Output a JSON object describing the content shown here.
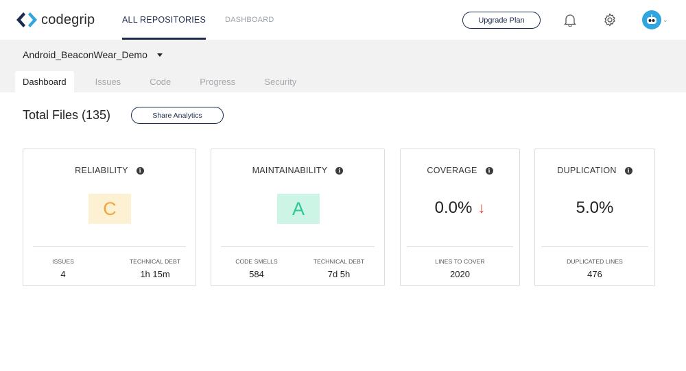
{
  "header": {
    "brand": "codegrip",
    "nav": {
      "all_repositories": "ALL REPOSITORIES",
      "dashboard": "DASHBOARD"
    },
    "upgrade_label": "Upgrade Plan",
    "icons": [
      "bell-icon",
      "gear-icon",
      "avatar-robot-icon"
    ],
    "accent": "#1b2a4e"
  },
  "repo": {
    "name": "Android_BeaconWear_Demo"
  },
  "tabs": [
    {
      "label": "Dashboard",
      "active": true
    },
    {
      "label": "Issues",
      "active": false
    },
    {
      "label": "Code",
      "active": false
    },
    {
      "label": "Progress",
      "active": false
    },
    {
      "label": "Security",
      "active": false
    }
  ],
  "main": {
    "title": "Total Files (135)",
    "share_label": "Share Analytics"
  },
  "cards": {
    "reliability": {
      "title": "RELIABILITY",
      "grade": "C",
      "grade_bg": "#fcf1d2",
      "grade_color": "#f0a640",
      "left_label": "ISSUES",
      "left_value": "4",
      "right_label": "TECHNICAL DEBT",
      "right_value": "1h 15m"
    },
    "maintainability": {
      "title": "MAINTAINABILITY",
      "grade": "A",
      "grade_bg": "#cdf5e6",
      "grade_color": "#2ec79a",
      "left_label": "CODE SMELLS",
      "left_value": "584",
      "right_label": "TECHNICAL DEBT",
      "right_value": "7d 5h"
    },
    "coverage": {
      "title": "COVERAGE",
      "value": "0.0%",
      "trend": "↓",
      "trend_color": "#e0443a",
      "label": "LINES TO COVER",
      "label_value": "2020"
    },
    "duplication": {
      "title": "DUPLICATION",
      "value": "5.0%",
      "label": "DUPLICATED LINES",
      "label_value": "476"
    }
  }
}
